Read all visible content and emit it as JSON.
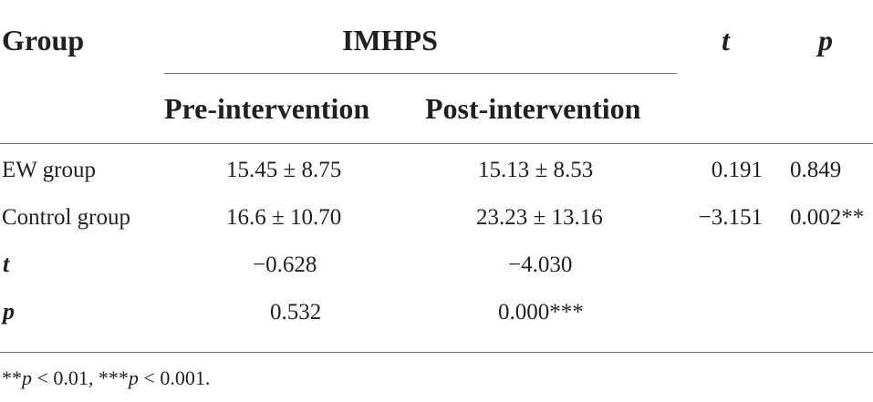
{
  "header": {
    "group": "Group",
    "imhps": "IMHPS",
    "t": "t",
    "p": "p",
    "pre": "Pre-intervention",
    "post": "Post-intervention"
  },
  "rows": [
    {
      "label": "EW group",
      "pre": "15.45 ± 8.75",
      "post": "15.13 ± 8.53",
      "t": "0.191",
      "p": "0.849"
    },
    {
      "label": "Control group",
      "pre": "16.6 ± 10.70",
      "post": "23.23 ± 13.16",
      "t": "−3.151",
      "p": "0.002**"
    },
    {
      "label": "t",
      "pre": "−0.628",
      "post": "−4.030",
      "t": "",
      "p": ""
    },
    {
      "label": "p",
      "pre": "0.532",
      "post": "0.000***",
      "t": "",
      "p": ""
    }
  ],
  "footnote": {
    "stars1": "**",
    "p1": "p",
    "rest1": " < 0.01, ",
    "stars2": "***",
    "p2": "p",
    "rest2": " < 0.001."
  }
}
